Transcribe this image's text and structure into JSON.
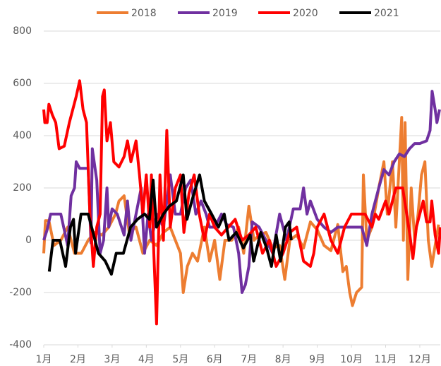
{
  "chart_data": {
    "type": "line",
    "xlim": [
      1,
      12.6
    ],
    "xticks": [
      {
        "value": 1,
        "label": "1月"
      },
      {
        "value": 2,
        "label": "2月"
      },
      {
        "value": 3,
        "label": "3月"
      },
      {
        "value": 4,
        "label": "4月"
      },
      {
        "value": 5,
        "label": "5月"
      },
      {
        "value": 6,
        "label": "6月"
      },
      {
        "value": 7,
        "label": "7月"
      },
      {
        "value": 8,
        "label": "8月"
      },
      {
        "value": 9,
        "label": "9月"
      },
      {
        "value": 10,
        "label": "10月"
      },
      {
        "value": 11,
        "label": "11月"
      },
      {
        "value": 12,
        "label": "12月"
      }
    ],
    "ylim": [
      -400,
      800
    ],
    "yticks": [
      -400,
      -200,
      0,
      200,
      400,
      600,
      800
    ],
    "grid": true,
    "legend": "top",
    "series": [
      {
        "name": "2018",
        "color": "#ED7D31",
        "x": [
          1,
          1.05,
          1.15,
          1.3,
          1.5,
          1.7,
          1.9,
          2.1,
          2.3,
          2.5,
          2.7,
          2.9,
          3.1,
          3.2,
          3.35,
          3.5,
          3.7,
          3.9,
          4.1,
          4.3,
          4.5,
          4.7,
          4.85,
          5,
          5.08,
          5.2,
          5.35,
          5.5,
          5.7,
          5.85,
          6,
          6.15,
          6.3,
          6.5,
          6.7,
          6.85,
          7,
          7.15,
          7.3,
          7.5,
          7.7,
          7.9,
          8.05,
          8.2,
          8.4,
          8.6,
          8.8,
          9,
          9.2,
          9.4,
          9.6,
          9.75,
          9.85,
          9.95,
          10.03,
          10.15,
          10.3,
          10.35,
          10.45,
          10.6,
          10.8,
          10.95,
          11.05,
          11.2,
          11.3,
          11.47,
          11.52,
          11.57,
          11.65,
          11.75,
          11.85,
          11.95,
          12.05,
          12.15,
          12.25,
          12.35,
          12.45,
          12.55
        ],
        "values": [
          -50,
          75,
          75,
          -20,
          0,
          50,
          -50,
          -50,
          0,
          30,
          20,
          50,
          100,
          150,
          170,
          30,
          50,
          -50,
          0,
          -20,
          30,
          50,
          0,
          -50,
          -200,
          -100,
          -50,
          -80,
          50,
          -80,
          0,
          -150,
          0,
          0,
          50,
          -50,
          130,
          0,
          20,
          30,
          -30,
          -20,
          -150,
          0,
          20,
          -30,
          70,
          40,
          -20,
          -40,
          60,
          -120,
          -100,
          -200,
          -250,
          -200,
          -180,
          250,
          0,
          50,
          200,
          300,
          100,
          300,
          50,
          470,
          0,
          450,
          -150,
          200,
          0,
          100,
          250,
          300,
          0,
          -100,
          -20,
          60
        ]
      },
      {
        "name": "2019",
        "color": "#7030A0",
        "x": [
          1,
          1.1,
          1.2,
          1.5,
          1.7,
          1.8,
          1.9,
          1.95,
          2.05,
          2.3,
          2.38,
          2.42,
          2.55,
          2.65,
          2.75,
          2.85,
          2.9,
          3.0,
          3.15,
          3.35,
          3.45,
          3.55,
          3.7,
          3.85,
          3.95,
          4.05,
          4.15,
          4.3,
          4.5,
          4.7,
          4.85,
          5.0,
          5.15,
          5.3,
          5.45,
          5.6,
          5.75,
          5.85,
          6.0,
          6.2,
          6.35,
          6.55,
          6.7,
          6.8,
          6.9,
          7.0,
          7.1,
          7.3,
          7.5,
          7.7,
          7.9,
          8.1,
          8.3,
          8.5,
          8.6,
          8.7,
          8.8,
          9.0,
          9.2,
          9.4,
          9.6,
          9.8,
          10.0,
          10.3,
          10.45,
          10.6,
          10.8,
          10.95,
          11.1,
          11.25,
          11.4,
          11.55,
          11.7,
          11.85,
          12.0,
          12.2,
          12.3,
          12.36,
          12.45,
          12.5,
          12.58
        ],
        "values": [
          0,
          40,
          100,
          100,
          -20,
          170,
          200,
          300,
          275,
          275,
          -10,
          350,
          230,
          -50,
          0,
          200,
          50,
          120,
          100,
          20,
          150,
          0,
          100,
          200,
          -50,
          100,
          0,
          100,
          50,
          250,
          100,
          100,
          200,
          230,
          100,
          150,
          100,
          50,
          50,
          100,
          60,
          50,
          -50,
          -200,
          -170,
          -100,
          70,
          50,
          0,
          -50,
          100,
          0,
          120,
          120,
          200,
          100,
          150,
          80,
          50,
          30,
          50,
          50,
          50,
          50,
          -20,
          100,
          200,
          270,
          250,
          300,
          330,
          320,
          350,
          370,
          370,
          380,
          420,
          570,
          500,
          450,
          500
        ]
      },
      {
        "name": "2020",
        "color": "#FF0000",
        "x": [
          1,
          1.03,
          1.1,
          1.15,
          1.25,
          1.35,
          1.45,
          1.6,
          1.75,
          1.95,
          2.05,
          2.15,
          2.25,
          2.35,
          2.45,
          2.55,
          2.65,
          2.72,
          2.77,
          2.85,
          2.95,
          3.05,
          3.2,
          3.35,
          3.45,
          3.55,
          3.7,
          3.8,
          3.9,
          4,
          4.1,
          4.15,
          4.22,
          4.3,
          4.4,
          4.5,
          4.6,
          4.7,
          4.85,
          5,
          5.1,
          5.25,
          5.4,
          5.55,
          5.7,
          5.85,
          6,
          6.2,
          6.4,
          6.6,
          6.8,
          7,
          7.2,
          7.4,
          7.6,
          7.8,
          8,
          8.2,
          8.4,
          8.6,
          8.8,
          8.9,
          9,
          9.2,
          9.4,
          9.6,
          9.8,
          10,
          10.4,
          10.6,
          10.7,
          10.8,
          11,
          11.1,
          11.2,
          11.3,
          11.5,
          11.7,
          11.8,
          11.9,
          12,
          12.1,
          12.2,
          12.3,
          12.35,
          12.45,
          12.55,
          12.6
        ],
        "values": [
          500,
          450,
          450,
          520,
          480,
          450,
          350,
          360,
          450,
          550,
          610,
          500,
          450,
          100,
          -100,
          50,
          100,
          550,
          575,
          380,
          450,
          300,
          280,
          320,
          380,
          300,
          380,
          250,
          100,
          250,
          50,
          250,
          -50,
          -320,
          250,
          0,
          420,
          50,
          200,
          250,
          30,
          180,
          250,
          100,
          0,
          100,
          50,
          20,
          50,
          80,
          0,
          20,
          50,
          -50,
          0,
          -100,
          -50,
          30,
          50,
          -80,
          -100,
          -50,
          50,
          100,
          0,
          -50,
          50,
          100,
          100,
          50,
          100,
          80,
          150,
          100,
          150,
          200,
          200,
          30,
          -70,
          50,
          100,
          150,
          70,
          70,
          150,
          20,
          -50,
          50
        ]
      },
      {
        "name": "2021",
        "color": "#000000",
        "x": [
          1.16,
          1.27,
          1.47,
          1.64,
          1.78,
          1.87,
          1.93,
          2.09,
          2.3,
          2.5,
          2.6,
          2.8,
          2.98,
          3.12,
          3.33,
          3.54,
          3.74,
          3.95,
          4.09,
          4.2,
          4.3,
          4.5,
          4.67,
          4.88,
          5.08,
          5.19,
          5.33,
          5.56,
          5.7,
          5.91,
          6.11,
          6.28,
          6.42,
          6.63,
          6.84,
          7.04,
          7.14,
          7.35,
          7.52,
          7.66,
          7.8,
          7.93,
          8.07,
          8.18,
          8.24
        ],
        "values": [
          -120,
          0,
          0,
          -100,
          50,
          80,
          -50,
          100,
          100,
          0,
          -50,
          -80,
          -130,
          -50,
          -50,
          50,
          80,
          100,
          80,
          230,
          50,
          100,
          130,
          150,
          250,
          80,
          150,
          250,
          150,
          100,
          50,
          100,
          0,
          30,
          -30,
          20,
          -80,
          30,
          -30,
          -100,
          20,
          -80,
          50,
          70,
          0
        ]
      }
    ]
  }
}
